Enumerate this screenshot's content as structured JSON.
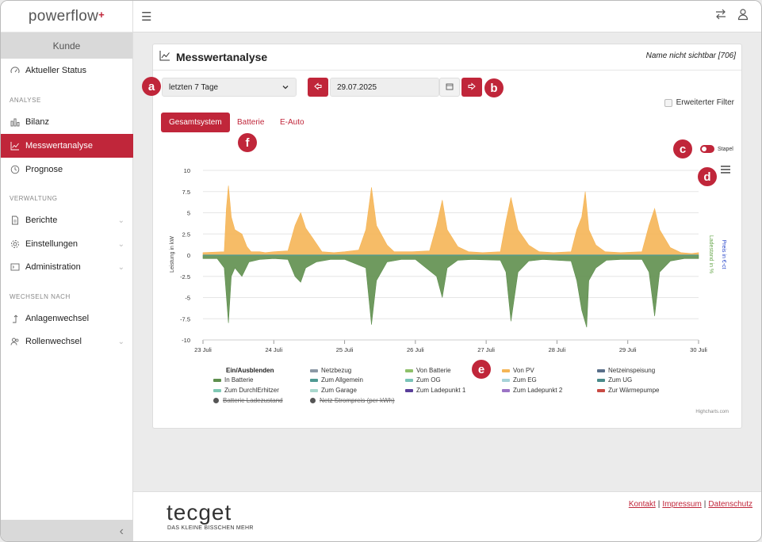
{
  "app": {
    "logo_text": "powerflow",
    "logo_mark": "+"
  },
  "sidebar": {
    "customer_label": "Kunde",
    "items": [
      {
        "label": "Aktueller Status",
        "icon": "speedometer-icon"
      },
      {
        "label": "Bilanz",
        "icon": "bar-chart-icon"
      },
      {
        "label": "Messwertanalyse",
        "icon": "line-chart-icon",
        "active": true
      },
      {
        "label": "Prognose",
        "icon": "clock-icon"
      },
      {
        "label": "Berichte",
        "icon": "document-icon"
      },
      {
        "label": "Einstellungen",
        "icon": "gear-icon"
      },
      {
        "label": "Administration",
        "icon": "terminal-icon"
      },
      {
        "label": "Anlagenwechsel",
        "icon": "arrow-up-icon"
      },
      {
        "label": "Rollenwechsel",
        "icon": "users-icon"
      }
    ],
    "sections": [
      "ANALYSE",
      "VERWALTUNG",
      "WECHSELN NACH"
    ],
    "collapse_glyph": "‹"
  },
  "topbar": {
    "menu_glyph": "☰"
  },
  "card": {
    "title": "Messwertanalyse",
    "meta": "Name nicht sichtbar [706]",
    "range_select": "letzten 7 Tage",
    "date": "29.07.2025",
    "filter_label": "Erweiterter Filter",
    "tabs": [
      "Gesamtsystem",
      "Batterie",
      "E-Auto"
    ],
    "stack_toggle_label": "Stapel",
    "callouts": [
      "a",
      "b",
      "c",
      "d",
      "e",
      "f"
    ]
  },
  "colors": {
    "accent": "#c0263a",
    "von_pv": "#f5b556",
    "von_batterie": "#8fc06a",
    "netzbezug": "#8c99a6",
    "in_batterie": "#5f8f4e",
    "zum_allgemein": "#4f9a93",
    "zum_og": "#79c3b8",
    "zum_eg": "#a7d3d8",
    "zur_waermepumpe": "#c94b44",
    "zum_ladepunkt_2": "#9b74c5"
  },
  "chart_data": {
    "type": "area",
    "stacked": true,
    "ylabel": "Leistung in kW",
    "ylabel_right_1": "Ladestand in %",
    "ylabel_right_2": "Preis in €-ct",
    "ylim": [
      -10,
      10
    ],
    "yticks": [
      "10",
      "7.5",
      "5",
      "2.5",
      "0",
      "-2.5",
      "-5",
      "-7.5",
      "-10"
    ],
    "xticks": [
      "23 Juli",
      "24 Juli",
      "25 Juli",
      "26 Juli",
      "27 Juli",
      "28 Juli",
      "29 Juli",
      "30 Juli"
    ],
    "x_days": [
      0,
      1,
      2,
      3,
      4,
      5,
      6,
      7
    ],
    "series": [
      {
        "name": "Von PV",
        "points": [
          [
            0,
            0.3
          ],
          [
            0.3,
            0.4
          ],
          [
            0.33,
            5.5
          ],
          [
            0.36,
            8.2
          ],
          [
            0.4,
            4.5
          ],
          [
            0.45,
            3.0
          ],
          [
            0.55,
            2.5
          ],
          [
            0.62,
            1.0
          ],
          [
            0.68,
            0.4
          ],
          [
            0.8,
            0.4
          ],
          [
            0.88,
            0.3
          ],
          [
            1.0,
            0.4
          ],
          [
            1.2,
            0.5
          ],
          [
            1.3,
            3.5
          ],
          [
            1.38,
            5.0
          ],
          [
            1.45,
            3.2
          ],
          [
            1.55,
            2.0
          ],
          [
            1.68,
            0.4
          ],
          [
            1.85,
            0.3
          ],
          [
            2.0,
            0.4
          ],
          [
            2.2,
            0.6
          ],
          [
            2.3,
            3.0
          ],
          [
            2.38,
            8.0
          ],
          [
            2.45,
            3.5
          ],
          [
            2.6,
            1.2
          ],
          [
            2.7,
            0.4
          ],
          [
            2.95,
            0.4
          ],
          [
            3.2,
            0.5
          ],
          [
            3.3,
            3.5
          ],
          [
            3.38,
            6.5
          ],
          [
            3.45,
            3.0
          ],
          [
            3.6,
            1.0
          ],
          [
            3.75,
            0.4
          ],
          [
            3.95,
            0.3
          ],
          [
            4.2,
            0.4
          ],
          [
            4.28,
            4.0
          ],
          [
            4.35,
            6.8
          ],
          [
            4.45,
            3.0
          ],
          [
            4.6,
            1.2
          ],
          [
            4.75,
            0.4
          ],
          [
            4.95,
            0.3
          ],
          [
            5.2,
            0.4
          ],
          [
            5.28,
            3.0
          ],
          [
            5.35,
            4.5
          ],
          [
            5.4,
            7.5
          ],
          [
            5.45,
            3.0
          ],
          [
            5.55,
            1.2
          ],
          [
            5.68,
            0.4
          ],
          [
            5.9,
            0.3
          ],
          [
            6.2,
            0.4
          ],
          [
            6.3,
            3.5
          ],
          [
            6.38,
            5.5
          ],
          [
            6.45,
            3.0
          ],
          [
            6.6,
            0.9
          ],
          [
            6.75,
            0.3
          ],
          [
            6.9,
            0.2
          ],
          [
            7.0,
            0.3
          ]
        ]
      },
      {
        "name": "In Batterie",
        "points": [
          [
            0,
            -0.4
          ],
          [
            0.2,
            -0.4
          ],
          [
            0.3,
            -1.5
          ],
          [
            0.36,
            -8.0
          ],
          [
            0.4,
            -2.5
          ],
          [
            0.45,
            -1.5
          ],
          [
            0.55,
            -2.5
          ],
          [
            0.65,
            -0.8
          ],
          [
            0.8,
            -0.5
          ],
          [
            1.0,
            -0.4
          ],
          [
            1.2,
            -0.5
          ],
          [
            1.3,
            -2.5
          ],
          [
            1.38,
            -3.2
          ],
          [
            1.45,
            -1.5
          ],
          [
            1.6,
            -0.8
          ],
          [
            1.8,
            -0.5
          ],
          [
            2.0,
            -0.5
          ],
          [
            2.3,
            -1.5
          ],
          [
            2.38,
            -8.2
          ],
          [
            2.45,
            -3.0
          ],
          [
            2.6,
            -0.8
          ],
          [
            2.8,
            -0.5
          ],
          [
            3.0,
            -0.5
          ],
          [
            3.3,
            -2.5
          ],
          [
            3.38,
            -5.0
          ],
          [
            3.45,
            -1.5
          ],
          [
            3.6,
            -0.6
          ],
          [
            3.8,
            -0.5
          ],
          [
            4.2,
            -0.6
          ],
          [
            4.28,
            -2.0
          ],
          [
            4.35,
            -7.8
          ],
          [
            4.45,
            -2.0
          ],
          [
            4.6,
            -0.7
          ],
          [
            4.8,
            -0.5
          ],
          [
            5.2,
            -0.7
          ],
          [
            5.28,
            -3.0
          ],
          [
            5.35,
            -6.5
          ],
          [
            5.42,
            -8.5
          ],
          [
            5.45,
            -3.0
          ],
          [
            5.55,
            -1.5
          ],
          [
            5.7,
            -0.6
          ],
          [
            5.9,
            -0.5
          ],
          [
            6.2,
            -0.5
          ],
          [
            6.3,
            -2.0
          ],
          [
            6.38,
            -7.2
          ],
          [
            6.45,
            -2.0
          ],
          [
            6.6,
            -0.7
          ],
          [
            6.8,
            -0.4
          ],
          [
            7.0,
            -0.4
          ]
        ]
      }
    ],
    "legend": {
      "title": "Ein/Ausblenden",
      "items": [
        {
          "name": "Netzbezug",
          "visible": true
        },
        {
          "name": "Von Batterie",
          "visible": true
        },
        {
          "name": "Von PV",
          "visible": true
        },
        {
          "name": "Netzeinspeisung",
          "visible": true
        },
        {
          "name": "In Batterie",
          "visible": true
        },
        {
          "name": "Zum Allgemein",
          "visible": true
        },
        {
          "name": "Zum OG",
          "visible": true
        },
        {
          "name": "Zum EG",
          "visible": true
        },
        {
          "name": "Zum UG",
          "visible": true
        },
        {
          "name": "Zum DurchlErhitzer",
          "visible": true
        },
        {
          "name": "Zum Garage",
          "visible": true
        },
        {
          "name": "Zum Ladepunkt 1",
          "visible": true
        },
        {
          "name": "Zum Ladepunkt 2",
          "visible": true
        },
        {
          "name": "Zur Wärmepumpe",
          "visible": true
        },
        {
          "name": "Batterie Ladezustand",
          "visible": false
        },
        {
          "name": "Netz Strompreis (per kWh)",
          "visible": false
        }
      ]
    },
    "credits": "Highcharts.com"
  },
  "footer": {
    "logo": "tecget",
    "tagline": "DAS KLEINE BISSCHEN MEHR",
    "links": [
      "Kontakt",
      "Impressum",
      "Datenschutz"
    ]
  }
}
